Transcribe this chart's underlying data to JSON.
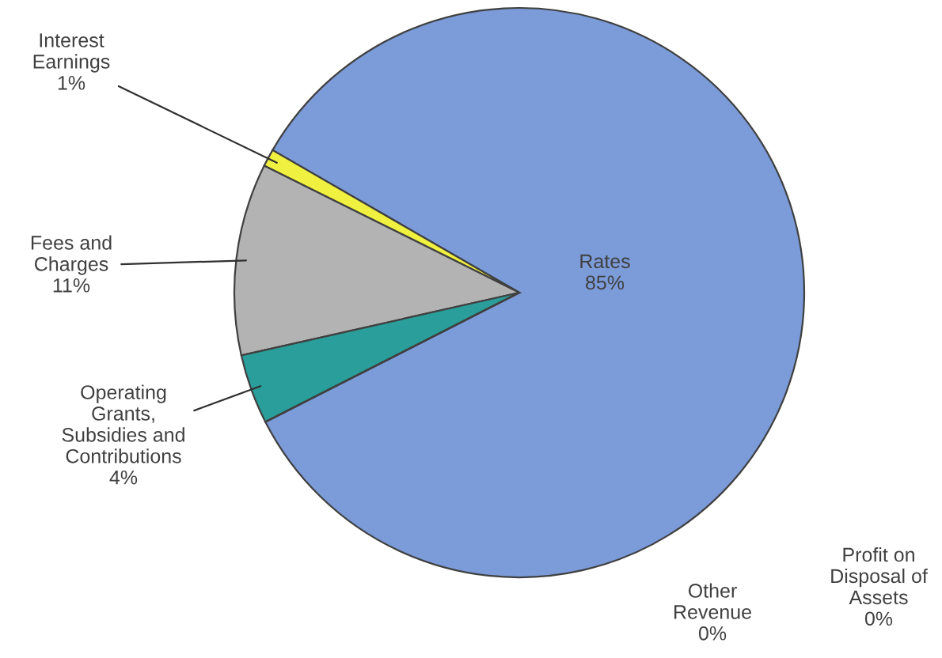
{
  "chart_data": {
    "type": "pie",
    "categories": [
      "Rates",
      "Interest Earnings",
      "Fees and Charges",
      "Operating Grants, Subsidies and Contributions",
      "Other Revenue",
      "Profit on Disposal of Assets"
    ],
    "values": [
      85,
      1,
      11,
      4,
      0,
      0
    ],
    "colors": [
      "#7b9bd9",
      "#f0f040",
      "#b3b3b3",
      "#2a9e9a",
      "#c0504d",
      "#8064a2"
    ],
    "value_labels": [
      "85%",
      "1%",
      "11%",
      "4%",
      "0%",
      "0%"
    ],
    "legend": false
  }
}
